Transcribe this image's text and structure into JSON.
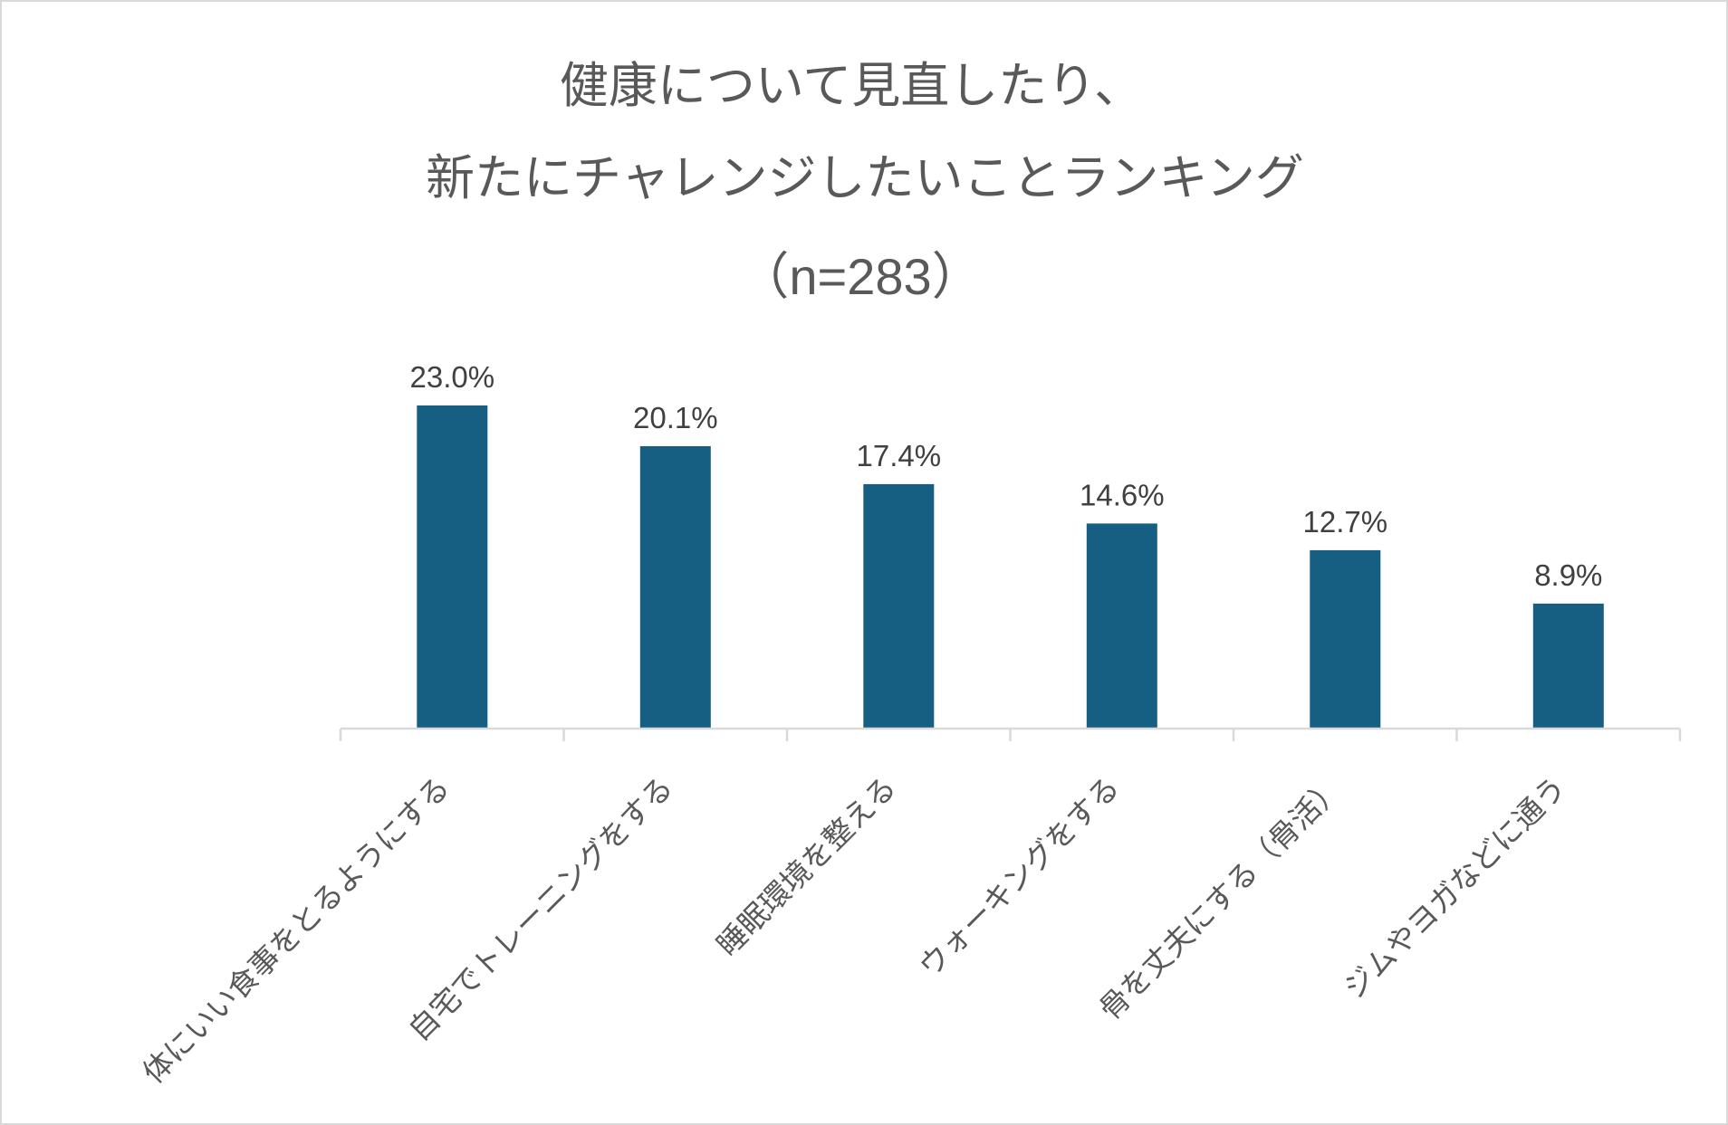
{
  "chart_data": {
    "type": "bar",
    "title_lines": [
      "健康について見直したり、",
      "新たにチャレンジしたいことランキング",
      "（n=283）"
    ],
    "categories": [
      "体にいい食事をとるようにする",
      "自宅でトレーニングをする",
      "睡眠環境を整える",
      "ウォーキングをする",
      "骨を丈夫にする（骨活）",
      "ジムやヨガなどに通う"
    ],
    "values": [
      23.0,
      20.1,
      17.4,
      14.6,
      12.7,
      8.9
    ],
    "value_labels": [
      "23.0%",
      "20.1%",
      "17.4%",
      "14.6%",
      "12.7%",
      "8.9%"
    ],
    "unit": "%",
    "ylim": [
      0,
      23.0
    ],
    "grid": false,
    "legend": "none",
    "bar_color": "#175f82",
    "axis_color": "#d9d9d9"
  }
}
